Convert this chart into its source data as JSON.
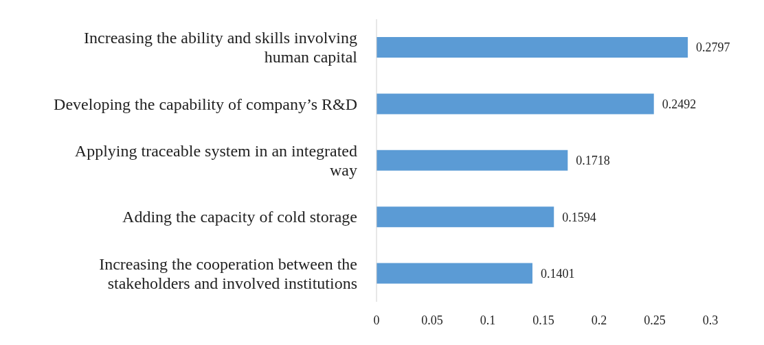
{
  "chart_data": {
    "type": "bar",
    "orientation": "horizontal",
    "categories": [
      "Increasing the ability and skills involving human capital",
      "Developing the capability of company’s R&D",
      "Applying traceable system in an integrated way",
      "Adding the capacity of cold storage",
      "Increasing the cooperation between the stakeholders and involved institutions"
    ],
    "values": [
      0.2797,
      0.2492,
      0.1718,
      0.1594,
      0.1401
    ],
    "color": "#5b9bd5",
    "xlim": [
      0,
      0.3
    ],
    "xticks": [
      0,
      0.05,
      0.1,
      0.15,
      0.2,
      0.25,
      0.3
    ],
    "data_labels": true,
    "grid": false,
    "legend": false
  }
}
